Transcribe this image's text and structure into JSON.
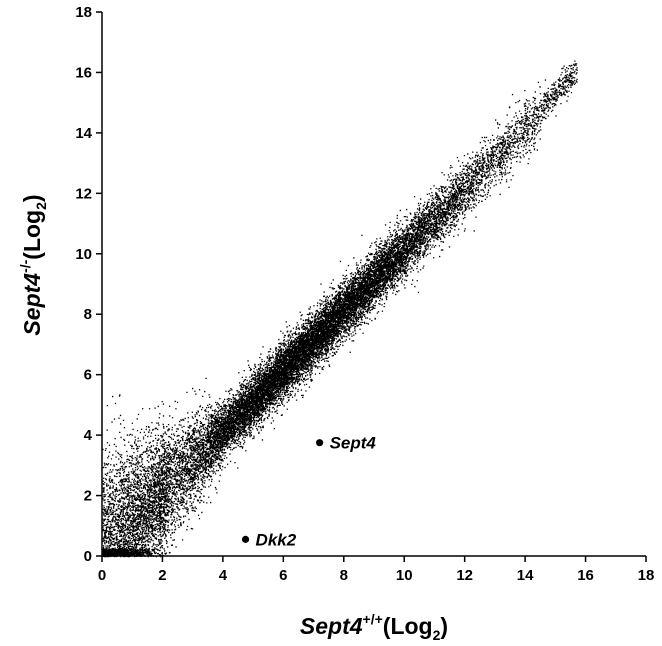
{
  "chart_data": {
    "type": "scatter",
    "title": "",
    "xlabel": {
      "italic": "Sept4",
      "superscript": "+/+",
      "text": "(Log",
      "subscript": "2",
      "close": ")"
    },
    "ylabel": {
      "italic": "Sept4",
      "superscript": "-/-",
      "text": "(Log",
      "subscript": "2",
      "close": ")"
    },
    "xlim": [
      0,
      18
    ],
    "ylim": [
      0,
      18
    ],
    "x_ticks": [
      "0",
      "2",
      "4",
      "6",
      "8",
      "10",
      "12",
      "14",
      "16",
      "18"
    ],
    "y_ticks": [
      "0",
      "2",
      "4",
      "6",
      "8",
      "10",
      "12",
      "14",
      "16",
      "18"
    ],
    "grid": false,
    "legend": "none",
    "point_color": "#000000",
    "highlighted_points": [
      {
        "label": "Sept4",
        "x": 7.2,
        "y": 3.75
      },
      {
        "label": "Dkk2",
        "x": 4.75,
        "y": 0.55
      }
    ],
    "background_cloud": {
      "description_free_stats": true,
      "relation": "y ≈ x",
      "x_range": [
        0,
        15.7
      ],
      "y_range": [
        0,
        16.4
      ],
      "approx_points": 20000
    }
  }
}
